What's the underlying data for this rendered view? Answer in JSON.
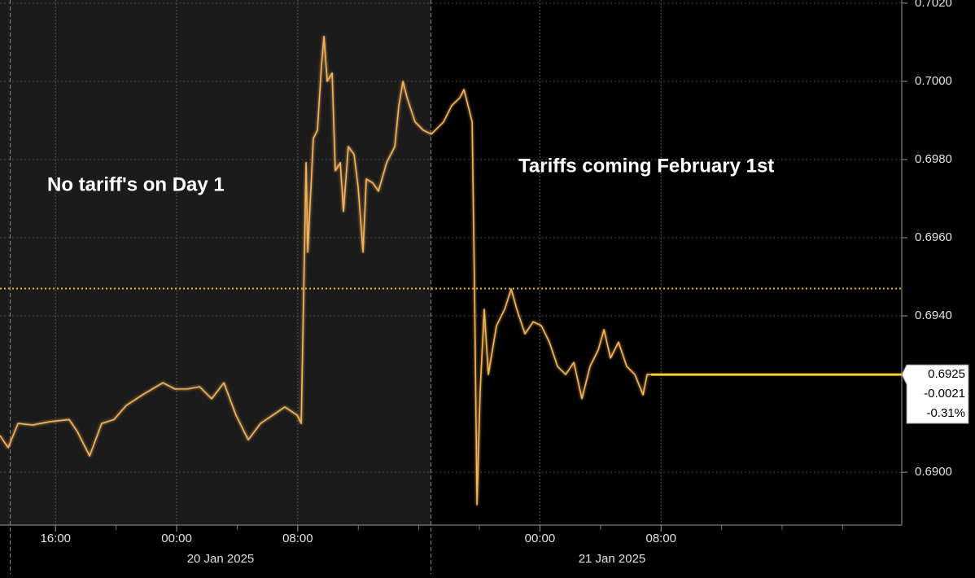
{
  "chart_data": {
    "type": "line",
    "annotations": [
      "No tariff's on Day 1",
      "Tariffs coming February 1st"
    ],
    "date_labels": [
      "20 Jan 2025",
      "21 Jan 2025"
    ],
    "xlim": [
      -11.67,
      47.9
    ],
    "xticks": [
      {
        "value": -8,
        "label": "16:00"
      },
      {
        "value": 0,
        "label": "00:00"
      },
      {
        "value": 8,
        "label": "08:00"
      },
      {
        "value": 24,
        "label": "00:00"
      },
      {
        "value": 32,
        "label": "08:00"
      }
    ],
    "xminorticks": [
      -4,
      4,
      12,
      16,
      20,
      28,
      36,
      40,
      44
    ],
    "separators": [
      -11,
      16.8
    ],
    "ylim": [
      0.68865,
      0.70208
    ],
    "yticks": [
      {
        "value": 0.69,
        "label": "0.6900"
      },
      {
        "value": 0.694,
        "label": "0.6940"
      },
      {
        "value": 0.696,
        "label": "0.6960"
      },
      {
        "value": 0.698,
        "label": "0.6980"
      },
      {
        "value": 0.7,
        "label": "0.7000"
      },
      {
        "value": 0.702,
        "label": "0.7020"
      }
    ],
    "grid": true,
    "reference_line": {
      "value": 0.6947,
      "color": "#e8b800"
    },
    "series": [
      {
        "color": "#f2b25c",
        "x": [
          -11.67,
          -11.13,
          -10.48,
          -9.52,
          -8.44,
          -7.1,
          -6.56,
          -5.75,
          -4.95,
          -4.14,
          -3.33,
          -2.26,
          -0.91,
          -0.11,
          0.7,
          1.51,
          2.31,
          3.12,
          3.92,
          4.73,
          5.54,
          6.34,
          7.15,
          7.96,
          8.23,
          8.39,
          8.55,
          8.66,
          9.03,
          9.3,
          9.57,
          9.73,
          9.95,
          10.27,
          10.48,
          10.81,
          11.02,
          11.34,
          11.72,
          11.99,
          12.31,
          12.53,
          12.96,
          13.33,
          13.87,
          14.41,
          14.68,
          14.95,
          15.22,
          15.75,
          16.29,
          16.83,
          17.63,
          18.17,
          18.71,
          18.98,
          19.25,
          19.52,
          19.68,
          19.84,
          20.05,
          20.32,
          20.59,
          21.13,
          21.67,
          22.1,
          22.47,
          23.01,
          23.55,
          24.09,
          24.62,
          25.16,
          25.7,
          26.24,
          26.77,
          27.31,
          27.85,
          28.23,
          28.66,
          29.19,
          29.73,
          30.27,
          30.81,
          31.08,
          31.34
        ],
        "values": [
          0.69094,
          0.69063,
          0.69125,
          0.69121,
          0.69129,
          0.69135,
          0.69104,
          0.69042,
          0.69125,
          0.69135,
          0.69171,
          0.69198,
          0.69229,
          0.69213,
          0.69213,
          0.69219,
          0.69188,
          0.69229,
          0.69146,
          0.69083,
          0.69125,
          0.69146,
          0.69167,
          0.69146,
          0.69125,
          0.69458,
          0.69792,
          0.69563,
          0.69854,
          0.69875,
          0.70042,
          0.70115,
          0.7,
          0.70021,
          0.69771,
          0.69792,
          0.69667,
          0.69833,
          0.69813,
          0.69729,
          0.69563,
          0.6975,
          0.6974,
          0.69719,
          0.69792,
          0.69833,
          0.69938,
          0.7,
          0.69958,
          0.69896,
          0.69875,
          0.69865,
          0.69896,
          0.69938,
          0.69958,
          0.69979,
          0.69938,
          0.69896,
          0.69458,
          0.68917,
          0.69208,
          0.69417,
          0.6925,
          0.69375,
          0.69417,
          0.69469,
          0.69417,
          0.69354,
          0.69385,
          0.69375,
          0.69333,
          0.69271,
          0.6925,
          0.69281,
          0.69188,
          0.69271,
          0.69313,
          0.69365,
          0.69292,
          0.69333,
          0.69271,
          0.6925,
          0.69198,
          0.6925,
          0.6925
        ]
      },
      {
        "color": "#f5d327",
        "x": [
          31.34,
          47.9
        ],
        "values": [
          0.6925,
          0.6925
        ]
      }
    ],
    "last_label": {
      "value": 0.6925,
      "change": "-0.0021",
      "change_pct": "-0.31%"
    }
  }
}
